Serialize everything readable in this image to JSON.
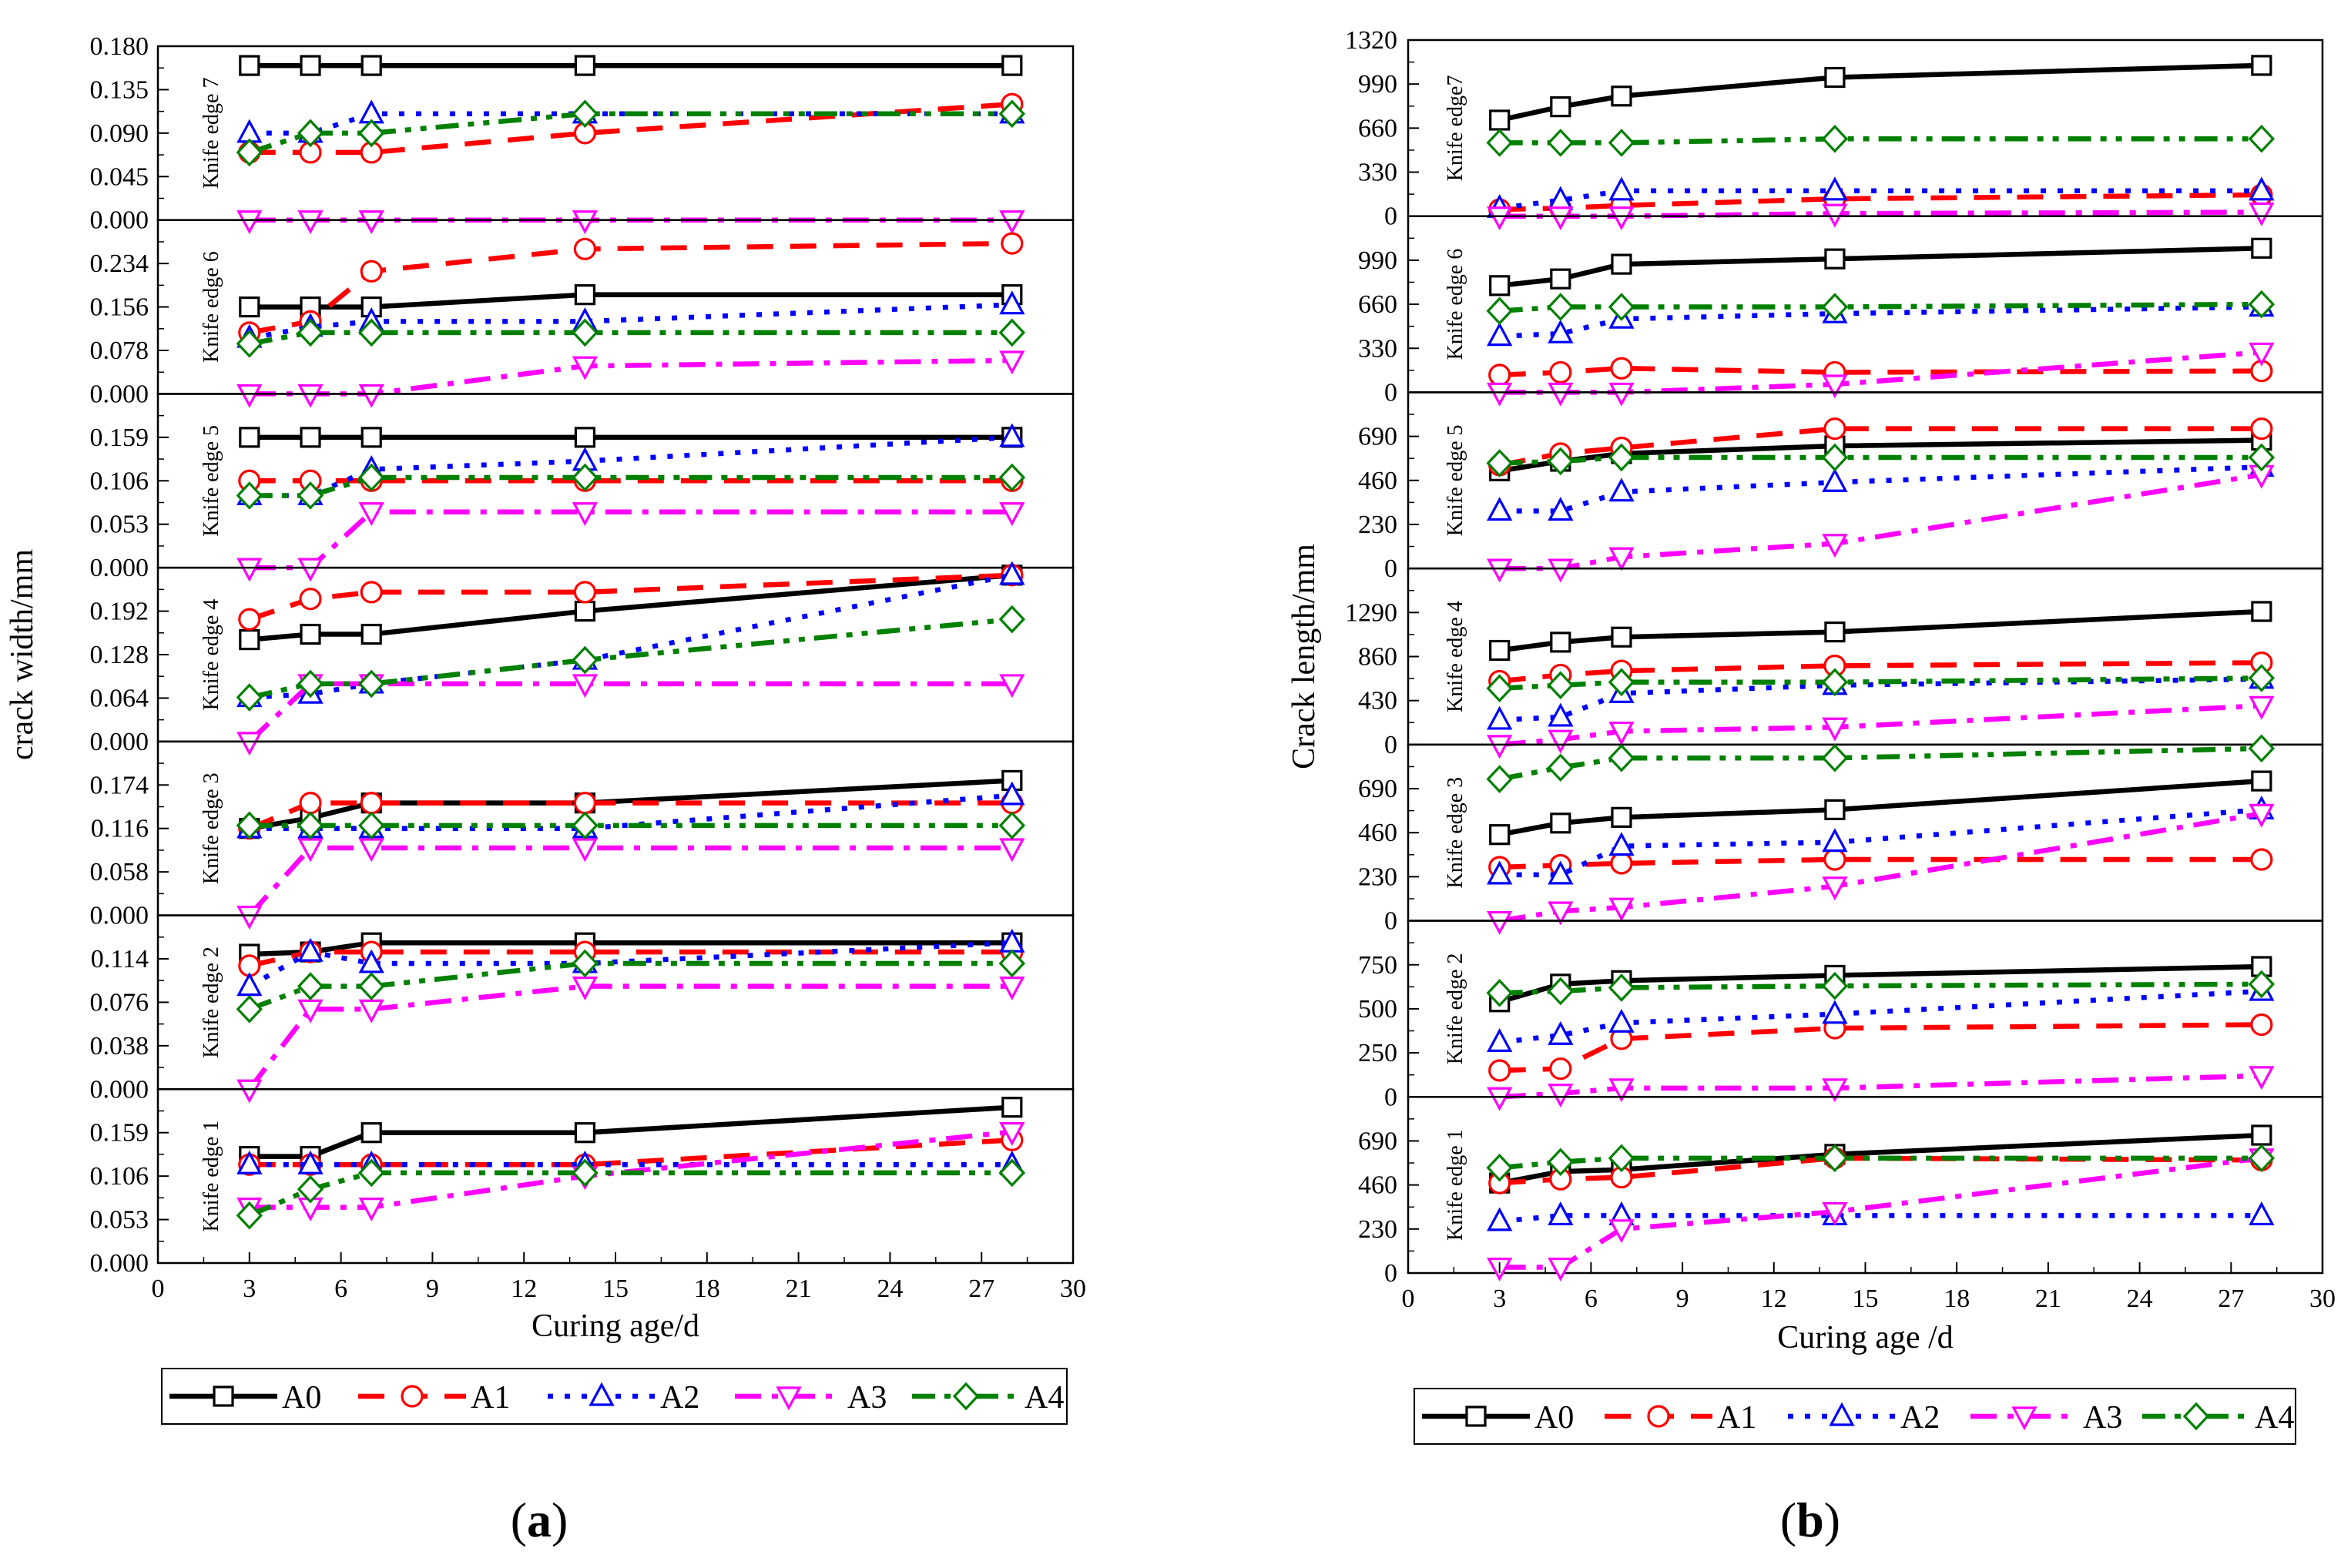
{
  "colors": {
    "A0": "#000000",
    "A1": "#ff0000",
    "A2": "#0000ff",
    "A3": "#ff00ff",
    "A4": "#008000"
  },
  "chart_data": [
    {
      "type": "line",
      "caption_letter": "a",
      "xlabel": "Curing age/d",
      "ylabel": "crack width/mm",
      "xlim": [
        0,
        30
      ],
      "xticks": [
        "0",
        "3",
        "6",
        "9",
        "12",
        "15",
        "18",
        "21",
        "24",
        "27",
        "30"
      ],
      "x": [
        3,
        5,
        7,
        14,
        28
      ],
      "legend": [
        "A0",
        "A1",
        "A2",
        "A3",
        "A4"
      ],
      "panels": [
        {
          "label": "Knife edge 7",
          "ylim": [
            0,
            0.18
          ],
          "yticks": [
            "0.000",
            "0.045",
            "0.090",
            "0.135",
            "0.180"
          ],
          "series": [
            {
              "name": "A0",
              "values": [
                0.16,
                0.16,
                0.16,
                0.16,
                0.16
              ]
            },
            {
              "name": "A1",
              "values": [
                0.07,
                0.07,
                0.07,
                0.09,
                0.12
              ]
            },
            {
              "name": "A2",
              "values": [
                0.09,
                0.09,
                0.11,
                0.11,
                0.11
              ]
            },
            {
              "name": "A3",
              "values": [
                0.0,
                0.0,
                0.0,
                0.0,
                0.0
              ]
            },
            {
              "name": "A4",
              "values": [
                0.07,
                0.09,
                0.09,
                0.11,
                0.11
              ]
            }
          ]
        },
        {
          "label": "Knife edge 6",
          "ylim": [
            0,
            0.312
          ],
          "yticks": [
            "0.000",
            "0.078",
            "0.156",
            "0.234"
          ],
          "series": [
            {
              "name": "A0",
              "values": [
                0.156,
                0.156,
                0.156,
                0.178,
                0.178
              ]
            },
            {
              "name": "A1",
              "values": [
                0.11,
                0.13,
                0.22,
                0.26,
                0.27
              ]
            },
            {
              "name": "A2",
              "values": [
                0.1,
                0.12,
                0.13,
                0.13,
                0.16
              ]
            },
            {
              "name": "A3",
              "values": [
                0.0,
                0.0,
                0.0,
                0.05,
                0.06
              ]
            },
            {
              "name": "A4",
              "values": [
                0.09,
                0.11,
                0.11,
                0.11,
                0.11
              ]
            }
          ]
        },
        {
          "label": "Knife edge 5",
          "ylim": [
            0,
            0.212
          ],
          "yticks": [
            "0.000",
            "0.053",
            "0.106",
            "0.159"
          ],
          "series": [
            {
              "name": "A0",
              "values": [
                0.159,
                0.159,
                0.159,
                0.159,
                0.159
              ]
            },
            {
              "name": "A1",
              "values": [
                0.106,
                0.106,
                0.106,
                0.106,
                0.106
              ]
            },
            {
              "name": "A2",
              "values": [
                0.088,
                0.088,
                0.12,
                0.13,
                0.159
              ]
            },
            {
              "name": "A3",
              "values": [
                0.0,
                0.0,
                0.068,
                0.068,
                0.068
              ]
            },
            {
              "name": "A4",
              "values": [
                0.088,
                0.088,
                0.11,
                0.11,
                0.11
              ]
            }
          ]
        },
        {
          "label": "Knife edge 4",
          "ylim": [
            0,
            0.256
          ],
          "yticks": [
            "0.000",
            "0.064",
            "0.128",
            "0.192"
          ],
          "series": [
            {
              "name": "A0",
              "values": [
                0.15,
                0.158,
                0.158,
                0.192,
                0.245
              ]
            },
            {
              "name": "A1",
              "values": [
                0.18,
                0.21,
                0.22,
                0.22,
                0.245
              ]
            },
            {
              "name": "A2",
              "values": [
                0.065,
                0.07,
                0.085,
                0.12,
                0.245
              ]
            },
            {
              "name": "A3",
              "values": [
                0.0,
                0.085,
                0.085,
                0.085,
                0.085
              ]
            },
            {
              "name": "A4",
              "values": [
                0.065,
                0.085,
                0.085,
                0.12,
                0.18
              ]
            }
          ]
        },
        {
          "label": "Knife edge 3",
          "ylim": [
            0,
            0.232
          ],
          "yticks": [
            "0.000",
            "0.058",
            "0.116",
            "0.174"
          ],
          "series": [
            {
              "name": "A0",
              "values": [
                0.116,
                0.13,
                0.15,
                0.15,
                0.18
              ]
            },
            {
              "name": "A1",
              "values": [
                0.116,
                0.15,
                0.15,
                0.15,
                0.15
              ]
            },
            {
              "name": "A2",
              "values": [
                0.116,
                0.116,
                0.116,
                0.116,
                0.16
              ]
            },
            {
              "name": "A3",
              "values": [
                0.0,
                0.09,
                0.09,
                0.09,
                0.09
              ]
            },
            {
              "name": "A4",
              "values": [
                0.12,
                0.12,
                0.12,
                0.12,
                0.12
              ]
            }
          ]
        },
        {
          "label": "Knife edge 2",
          "ylim": [
            0,
            0.152
          ],
          "yticks": [
            "0.000",
            "0.038",
            "0.076",
            "0.114"
          ],
          "series": [
            {
              "name": "A0",
              "values": [
                0.118,
                0.12,
                0.128,
                0.128,
                0.128
              ]
            },
            {
              "name": "A1",
              "values": [
                0.108,
                0.12,
                0.12,
                0.12,
                0.12
              ]
            },
            {
              "name": "A2",
              "values": [
                0.09,
                0.12,
                0.11,
                0.11,
                0.128
              ]
            },
            {
              "name": "A3",
              "values": [
                0.0,
                0.07,
                0.07,
                0.09,
                0.09
              ]
            },
            {
              "name": "A4",
              "values": [
                0.07,
                0.09,
                0.09,
                0.11,
                0.11
              ]
            }
          ]
        },
        {
          "label": "Knife edge 1",
          "ylim": [
            0,
            0.212
          ],
          "yticks": [
            "0.000",
            "0.053",
            "0.106",
            "0.159"
          ],
          "series": [
            {
              "name": "A0",
              "values": [
                0.13,
                0.13,
                0.159,
                0.159,
                0.19
              ]
            },
            {
              "name": "A1",
              "values": [
                0.12,
                0.12,
                0.12,
                0.12,
                0.15
              ]
            },
            {
              "name": "A2",
              "values": [
                0.12,
                0.12,
                0.12,
                0.12,
                0.12
              ]
            },
            {
              "name": "A3",
              "values": [
                0.068,
                0.068,
                0.068,
                0.106,
                0.16
              ]
            },
            {
              "name": "A4",
              "values": [
                0.058,
                0.09,
                0.11,
                0.11,
                0.11
              ]
            }
          ]
        }
      ]
    },
    {
      "type": "line",
      "caption_letter": "b",
      "xlabel": "Curing age /d",
      "ylabel": "Crack length/mm",
      "xlim": [
        0,
        30
      ],
      "xticks": [
        "0",
        "3",
        "6",
        "9",
        "12",
        "15",
        "18",
        "21",
        "24",
        "27",
        "30"
      ],
      "x": [
        3,
        5,
        7,
        14,
        28
      ],
      "legend": [
        "A0",
        "A1",
        "A2",
        "A3",
        "A4"
      ],
      "panels": [
        {
          "label": "Knife edge7",
          "ylim": [
            0,
            1320
          ],
          "yticks": [
            "0",
            "330",
            "660",
            "990",
            "1320"
          ],
          "series": [
            {
              "name": "A0",
              "values": [
                720,
                820,
                900,
                1040,
                1130
              ]
            },
            {
              "name": "A1",
              "values": [
                50,
                60,
                80,
                130,
                160
              ]
            },
            {
              "name": "A2",
              "values": [
                60,
                120,
                190,
                190,
                190
              ]
            },
            {
              "name": "A3",
              "values": [
                0,
                0,
                0,
                20,
                30
              ]
            },
            {
              "name": "A4",
              "values": [
                550,
                550,
                550,
                580,
                580
              ]
            }
          ]
        },
        {
          "label": "Knife edge 6",
          "ylim": [
            0,
            1320
          ],
          "yticks": [
            "0",
            "330",
            "660",
            "990"
          ],
          "series": [
            {
              "name": "A0",
              "values": [
                800,
                850,
                960,
                1000,
                1080
              ]
            },
            {
              "name": "A1",
              "values": [
                130,
                150,
                180,
                150,
                160
              ]
            },
            {
              "name": "A2",
              "values": [
                420,
                440,
                550,
                590,
                640
              ]
            },
            {
              "name": "A3",
              "values": [
                0,
                0,
                0,
                60,
                300
              ]
            },
            {
              "name": "A4",
              "values": [
                610,
                640,
                640,
                640,
                660
              ]
            }
          ]
        },
        {
          "label": "Knife edge 5",
          "ylim": [
            0,
            920
          ],
          "yticks": [
            "0",
            "230",
            "460",
            "690"
          ],
          "series": [
            {
              "name": "A0",
              "values": [
                510,
                560,
                600,
                640,
                670
              ]
            },
            {
              "name": "A1",
              "values": [
                540,
                600,
                630,
                730,
                730
              ]
            },
            {
              "name": "A2",
              "values": [
                300,
                300,
                400,
                450,
                530
              ]
            },
            {
              "name": "A3",
              "values": [
                0,
                0,
                60,
                130,
                490
              ]
            },
            {
              "name": "A4",
              "values": [
                550,
                560,
                580,
                580,
                580
              ]
            }
          ]
        },
        {
          "label": "Knife edge 4",
          "ylim": [
            0,
            1720
          ],
          "yticks": [
            "0",
            "430",
            "860",
            "1290"
          ],
          "series": [
            {
              "name": "A0",
              "values": [
                920,
                1000,
                1050,
                1100,
                1300
              ]
            },
            {
              "name": "A1",
              "values": [
                620,
                680,
                720,
                770,
                800
              ]
            },
            {
              "name": "A2",
              "values": [
                240,
                270,
                500,
                580,
                640
              ]
            },
            {
              "name": "A3",
              "values": [
                0,
                50,
                130,
                170,
                380
              ]
            },
            {
              "name": "A4",
              "values": [
                550,
                580,
                610,
                610,
                650
              ]
            }
          ]
        },
        {
          "label": "Knife edge 3",
          "ylim": [
            0,
            920
          ],
          "yticks": [
            "0",
            "230",
            "460",
            "690"
          ],
          "series": [
            {
              "name": "A0",
              "values": [
                450,
                510,
                540,
                580,
                730
              ]
            },
            {
              "name": "A1",
              "values": [
                280,
                290,
                300,
                320,
                320
              ]
            },
            {
              "name": "A2",
              "values": [
                240,
                240,
                390,
                410,
                580
              ]
            },
            {
              "name": "A3",
              "values": [
                0,
                50,
                70,
                180,
                560
              ]
            },
            {
              "name": "A4",
              "values": [
                740,
                800,
                850,
                850,
                900
              ]
            }
          ]
        },
        {
          "label": "Knife edge 2",
          "ylim": [
            0,
            1000
          ],
          "yticks": [
            "0",
            "250",
            "500",
            "750"
          ],
          "series": [
            {
              "name": "A0",
              "values": [
                540,
                640,
                660,
                690,
                740
              ]
            },
            {
              "name": "A1",
              "values": [
                150,
                160,
                330,
                390,
                410
              ]
            },
            {
              "name": "A2",
              "values": [
                310,
                350,
                420,
                470,
                600
              ]
            },
            {
              "name": "A3",
              "values": [
                0,
                20,
                50,
                50,
                120
              ]
            },
            {
              "name": "A4",
              "values": [
                590,
                600,
                620,
                630,
                640
              ]
            }
          ]
        },
        {
          "label": "Knife edge 1",
          "ylim": [
            0,
            920
          ],
          "yticks": [
            "0",
            "230",
            "460",
            "690"
          ],
          "series": [
            {
              "name": "A0",
              "values": [
                470,
                530,
                540,
                620,
                720
              ]
            },
            {
              "name": "A1",
              "values": [
                470,
                490,
                500,
                600,
                590
              ]
            },
            {
              "name": "A2",
              "values": [
                270,
                300,
                300,
                300,
                300
              ]
            },
            {
              "name": "A3",
              "values": [
                30,
                30,
                230,
                320,
                600
              ]
            },
            {
              "name": "A4",
              "values": [
                550,
                580,
                600,
                600,
                600
              ]
            }
          ]
        }
      ]
    }
  ]
}
